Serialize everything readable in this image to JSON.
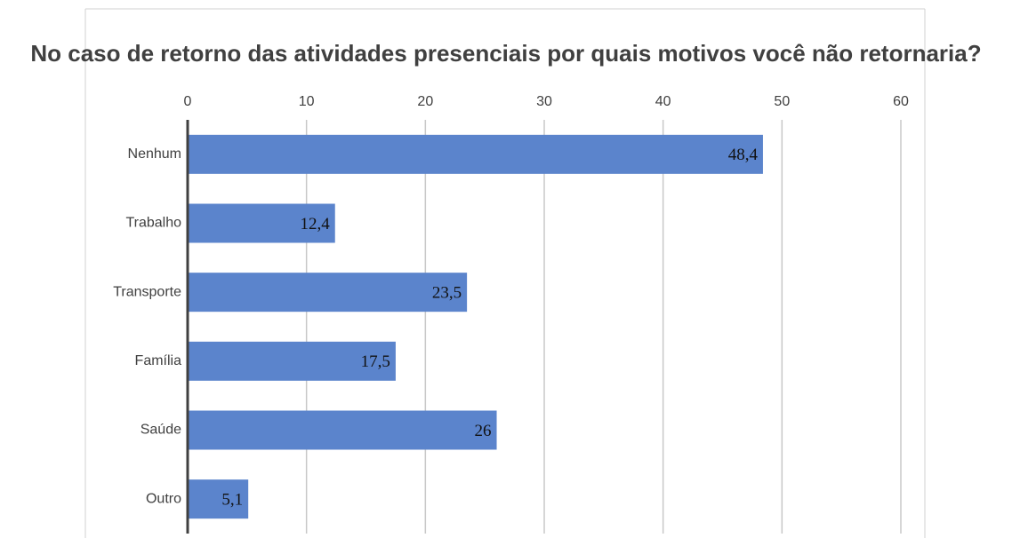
{
  "chart_data": {
    "type": "bar",
    "orientation": "horizontal",
    "title": "No caso de retorno das atividades presenciais por quais motivos você não retornaria?",
    "categories": [
      "Nenhum",
      "Trabalho",
      "Transporte",
      "Família",
      "Saúde",
      "Outro"
    ],
    "values": [
      48.4,
      12.4,
      23.5,
      17.5,
      26,
      5.1
    ],
    "value_labels": [
      "48,4",
      "12,4",
      "23,5",
      "17,5",
      "26",
      "5,1"
    ],
    "color": "#5b84cc",
    "xlim": [
      0,
      60
    ],
    "xticks": [
      0,
      10,
      20,
      30,
      40,
      50,
      60
    ],
    "grid": true
  }
}
